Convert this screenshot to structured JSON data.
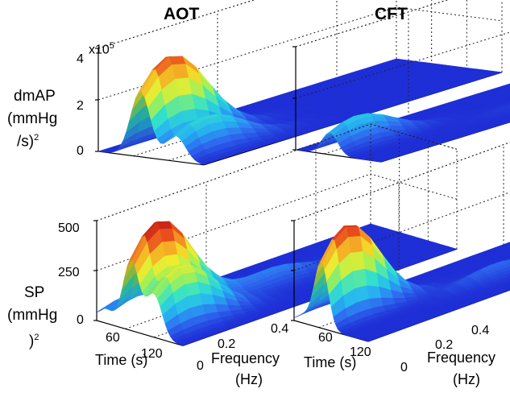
{
  "chart_data": {
    "type": "surface3d",
    "columns": [
      "AOT",
      "CFT"
    ],
    "rows": [
      {
        "ylabel_lines": [
          "dmAP",
          "(mmHg",
          "/s)"
        ],
        "ylabel_sup": "2",
        "scale_base": "x10",
        "scale_exp": "5",
        "zticks": [
          "0",
          "2",
          "4"
        ],
        "zlim": [
          0,
          4
        ],
        "panels": [
          {
            "column": "AOT",
            "peaks": [
              {
                "time": 60,
                "freq": 0.05,
                "height": 3.6
              },
              {
                "time": 110,
                "freq": 0.05,
                "height": 1.4
              }
            ]
          },
          {
            "column": "CFT",
            "peaks": [
              {
                "time": 60,
                "freq": 0.05,
                "height": 1.2
              },
              {
                "time": 100,
                "freq": 0.3,
                "height": 0.1
              }
            ]
          }
        ]
      },
      {
        "ylabel_lines": [
          "SP",
          "(mmHg",
          ")"
        ],
        "ylabel_sup": "2",
        "zticks": [
          "0",
          "250",
          "500"
        ],
        "zlim": [
          0,
          500
        ],
        "panels": [
          {
            "column": "AOT",
            "peaks": [
              {
                "time": 60,
                "freq": 0.05,
                "height": 500
              },
              {
                "time": 100,
                "freq": 0.05,
                "height": 300
              },
              {
                "time": 15,
                "freq": 0.05,
                "height": 100
              },
              {
                "time": 70,
                "freq": 0.25,
                "height": 80
              }
            ]
          },
          {
            "column": "CFT",
            "peaks": [
              {
                "time": 55,
                "freq": 0.05,
                "height": 470
              },
              {
                "time": 90,
                "freq": 0.3,
                "height": 60
              },
              {
                "time": 20,
                "freq": 0.05,
                "height": 55
              }
            ]
          }
        ]
      }
    ],
    "xaxis": {
      "label": "Time (s)",
      "ticks": [
        "60",
        "120"
      ],
      "range": [
        0,
        150
      ]
    },
    "faxis": {
      "label_lines": [
        "Frequency",
        "(Hz)"
      ],
      "ticks": [
        "0",
        "0.2",
        "0.4"
      ],
      "range": [
        0,
        0.5
      ]
    },
    "colormap": [
      "#1f2fd6",
      "#2f6cf0",
      "#26b8f0",
      "#34e3c8",
      "#9ef058",
      "#f2ec2c",
      "#f4a224",
      "#e6421c",
      "#bb1412"
    ]
  }
}
